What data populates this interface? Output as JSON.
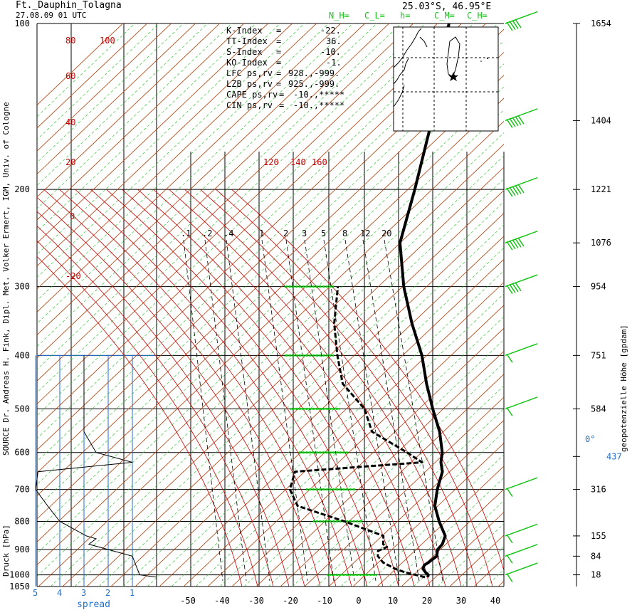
{
  "header": {
    "station": "Ft._Dauphin_Tolagna",
    "datetime": "27.08.09  01 UTC",
    "location": "25.03°S, 46.95°E",
    "cloud_labels": [
      "N_H=",
      "C_L=",
      "h=",
      "C_M=",
      "C_H="
    ]
  },
  "indices": [
    {
      "label": "K-Index",
      "eq": "=",
      "value": "-22."
    },
    {
      "label": "TT-Index",
      "eq": "=",
      "value": "36."
    },
    {
      "label": "S-Index",
      "eq": "=",
      "value": "-10."
    },
    {
      "label": "KO-Index",
      "eq": "=",
      "value": "-1."
    },
    {
      "label": "LFC  ps,rv",
      "eq": "=",
      "value": "928.,-999."
    },
    {
      "label": "LZB  ps,rv",
      "eq": "=",
      "value": "925.,-999."
    },
    {
      "label": "CAPE  ps,rv",
      "eq": "=",
      "value": "-10.,*****"
    },
    {
      "label": "CIN  ps,rv",
      "eq": "=",
      "value": "-10.,*****"
    }
  ],
  "left_vertical_label": "SOURCE Dr. Andreas H. Fink, Dipl. Met. Volker Ermert, IGM, Univ. of Cologne",
  "pressure_axis_label": "Druck [hPa]",
  "right_vertical_label": "geopotenzielle Höhe [gpdam]",
  "spread_label": "spread",
  "freezing_label": "0°",
  "colors": {
    "temperature": "#000000",
    "dewpoint": "#000000",
    "dry_adiabat": "#b03a00",
    "moist_adiabat": "#cc0000",
    "mixing_ratio": "#000000",
    "saturation_green": "#19c419",
    "spread_axis": "#1e6fd0",
    "wind": "#19c419"
  },
  "chart_data": {
    "type": "line",
    "title": "Ft._Dauphin_Tolagna",
    "xlabel": "",
    "ylabel": "Druck [hPa]",
    "y_scale": "log",
    "ylim": [
      1050,
      100
    ],
    "xlim": [
      -60,
      40
    ],
    "pressure_ticks": [
      100,
      200,
      300,
      400,
      500,
      600,
      700,
      800,
      900,
      1000,
      1050
    ],
    "temperature_ticks": [
      -50,
      -40,
      -30,
      -20,
      -10,
      0,
      10,
      20,
      30,
      40
    ],
    "height_ticks": [
      {
        "p": 100,
        "label": "1654"
      },
      {
        "p": 150,
        "label": "1404"
      },
      {
        "p": 200,
        "label": "1221"
      },
      {
        "p": 250,
        "label": "1076"
      },
      {
        "p": 300,
        "label": "954"
      },
      {
        "p": 400,
        "label": "751"
      },
      {
        "p": 500,
        "label": "584"
      },
      {
        "p": 610,
        "label": "437"
      },
      {
        "p": 700,
        "label": "316"
      },
      {
        "p": 850,
        "label": "155"
      },
      {
        "p": 925,
        "label": "84"
      },
      {
        "p": 1000,
        "label": "18"
      }
    ],
    "spread_ticks": [
      "5",
      "4",
      "3",
      "2",
      "1"
    ],
    "mixing_ratio_labels": [
      ".1",
      ".2",
      ".4",
      "1",
      "2",
      "3",
      "5",
      "8",
      "12",
      "20"
    ],
    "dry_adiabat_labels": [
      "80",
      "100",
      "60",
      "40",
      "20",
      "0",
      "-20"
    ],
    "moist_adiabat_labels": [
      "120",
      "140",
      "160"
    ],
    "series": [
      {
        "name": "temperature",
        "points": [
          [
            1010,
            17.4
          ],
          [
            1000,
            17.2
          ],
          [
            990,
            16
          ],
          [
            975,
            14.6
          ],
          [
            960,
            14.4
          ],
          [
            950,
            15.2
          ],
          [
            925,
            16.6
          ],
          [
            900,
            15.8
          ],
          [
            880,
            16.3
          ],
          [
            850,
            15.8
          ],
          [
            800,
            11.6
          ],
          [
            750,
            7.8
          ],
          [
            700,
            5.8
          ],
          [
            650,
            4.4
          ],
          [
            625,
            2.4
          ],
          [
            600,
            1.2
          ],
          [
            550,
            -3.0
          ],
          [
            500,
            -8.8
          ],
          [
            450,
            -14.8
          ],
          [
            400,
            -20.8
          ],
          [
            350,
            -29.0
          ],
          [
            300,
            -37.5
          ],
          [
            250,
            -45.8
          ],
          [
            200,
            -50.2
          ],
          [
            150,
            -56.5
          ],
          [
            100,
            -67.4
          ]
        ]
      },
      {
        "name": "dewpoint",
        "points": [
          [
            1010,
            16.6
          ],
          [
            1000,
            13.4
          ],
          [
            990,
            10
          ],
          [
            975,
            6.4
          ],
          [
            950,
            1.8
          ],
          [
            925,
            -0.8
          ],
          [
            905,
            -1.6
          ],
          [
            890,
            0.4
          ],
          [
            880,
            -1.2
          ],
          [
            850,
            -2.5
          ],
          [
            800,
            -16.4
          ],
          [
            750,
            -32.8
          ],
          [
            700,
            -37.8
          ],
          [
            650,
            -39.2
          ],
          [
            625,
            -3.2
          ],
          [
            600,
            -9.2
          ],
          [
            550,
            -23.0
          ],
          [
            500,
            -29.0
          ],
          [
            450,
            -39.6
          ],
          [
            400,
            -45.8
          ],
          [
            350,
            -52.0
          ],
          [
            300,
            -57.0
          ]
        ]
      }
    ],
    "spread": [
      [
        1010,
        0
      ],
      [
        1000,
        0.7
      ],
      [
        925,
        1
      ],
      [
        880,
        2.8
      ],
      [
        860,
        2.5
      ],
      [
        850,
        2.9
      ],
      [
        800,
        4
      ],
      [
        750,
        4.5
      ],
      [
        700,
        5
      ],
      [
        650,
        4.9
      ],
      [
        625,
        1
      ],
      [
        600,
        2.5
      ],
      [
        550,
        3
      ],
      [
        500,
        3
      ],
      [
        450,
        3
      ],
      [
        400,
        3
      ]
    ],
    "wind_barbs": [
      {
        "p": 100,
        "dir": 280,
        "speed": 60
      },
      {
        "p": 150,
        "dir": 280,
        "speed": 85
      },
      {
        "p": 200,
        "dir": 270,
        "speed": 95
      },
      {
        "p": 250,
        "dir": 275,
        "speed": 70
      },
      {
        "p": 300,
        "dir": 280,
        "speed": 55
      },
      {
        "p": 400,
        "dir": 280,
        "speed": 15
      },
      {
        "p": 500,
        "dir": 300,
        "speed": 20
      },
      {
        "p": 700,
        "dir": 250,
        "speed": 15
      },
      {
        "p": 850,
        "dir": 200,
        "speed": 20
      },
      {
        "p": 925,
        "dir": 190,
        "speed": 10
      },
      {
        "p": 1000,
        "dir": 200,
        "speed": 15
      }
    ]
  }
}
